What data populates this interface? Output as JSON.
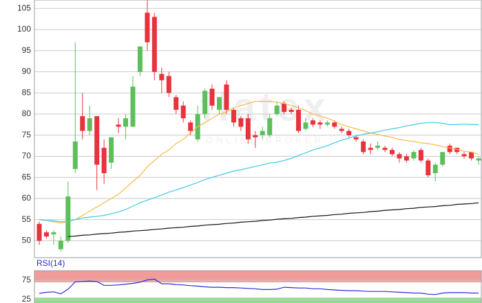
{
  "chart_data": [
    {
      "type": "candlestick",
      "watermark": {
        "logo": "flatex",
        "tagline": "ONLINE BROKER"
      },
      "up_color": "#5cbf5c",
      "down_color": "#e8323c",
      "open": [
        54,
        52,
        51.5,
        48,
        50,
        67,
        79.5,
        76,
        79.5,
        72,
        68.5,
        77.5,
        77,
        77,
        90,
        104,
        103,
        89.5,
        89,
        84,
        82,
        78,
        74,
        80,
        86,
        81,
        87,
        81,
        79,
        79,
        75,
        75,
        75,
        80,
        82.5,
        81,
        81,
        76.5,
        78.5,
        78,
        77.5,
        78,
        76.5,
        76,
        74.5,
        73.5,
        72,
        72,
        72,
        71.5,
        70.5,
        70,
        69.5,
        71.5,
        69,
        66,
        68,
        72.5,
        72,
        70.5,
        71,
        69
      ],
      "high": [
        54.5,
        52.5,
        52.5,
        51,
        64,
        97,
        85,
        82,
        79.5,
        74,
        74.5,
        79,
        80,
        89,
        96,
        107,
        104,
        91,
        90,
        84.5,
        83,
        78.5,
        82,
        86,
        87,
        84,
        88,
        81.5,
        79.5,
        80,
        76,
        77,
        80,
        83,
        83,
        81.5,
        82,
        79,
        79,
        78.5,
        78.5,
        78.5,
        77,
        76.5,
        75,
        74,
        73,
        73.5,
        72.5,
        72,
        71,
        70.5,
        71.5,
        72,
        69.5,
        68.5,
        71,
        73,
        72,
        71,
        71,
        70
      ],
      "low": [
        49,
        50.5,
        49,
        47.5,
        49.5,
        66,
        74,
        75,
        62,
        63.5,
        67,
        75.5,
        74,
        77,
        89,
        95,
        88,
        85,
        84,
        80,
        78,
        75,
        73.5,
        79,
        81,
        80,
        80,
        77,
        76,
        73,
        72,
        74,
        74.5,
        79.5,
        80,
        80,
        75.5,
        76,
        77,
        76.5,
        77,
        76.5,
        75.5,
        74.5,
        73.5,
        70.5,
        70.5,
        71.5,
        71,
        70,
        68.5,
        68.5,
        69,
        68.5,
        65,
        64,
        67.5,
        70.5,
        70.5,
        69.5,
        69,
        68
      ],
      "close": [
        50,
        51,
        52,
        50,
        60.5,
        73.5,
        76,
        79,
        68,
        66,
        74.5,
        77,
        79,
        86.5,
        96,
        97,
        90,
        88,
        85,
        81,
        79,
        76,
        80,
        85.5,
        82,
        84,
        81,
        78,
        77,
        74,
        74.5,
        76,
        79,
        82,
        80.5,
        80.5,
        76,
        78,
        77.5,
        77.5,
        78,
        77,
        76,
        75,
        74,
        71,
        71.5,
        72.5,
        71.5,
        70.5,
        69.5,
        69,
        71,
        69,
        65.5,
        68,
        71,
        71,
        71,
        70,
        69.5,
        69.5
      ],
      "series": [
        {
          "color": "#f5b942",
          "values": [
            55,
            54.8,
            54.5,
            54.2,
            54.5,
            55,
            56,
            57,
            58,
            59,
            60,
            61,
            62.5,
            64,
            65.5,
            67.5,
            69,
            70.5,
            71.5,
            73,
            74,
            75.5,
            77,
            78,
            79,
            80,
            80.5,
            81.5,
            82,
            82.5,
            83,
            83,
            83,
            82.8,
            82.5,
            82,
            81.5,
            80.8,
            80,
            79.5,
            79,
            78.3,
            77.5,
            77,
            76.5,
            76,
            75.5,
            75.2,
            74.8,
            74.5,
            74,
            73.7,
            73.5,
            73.2,
            73,
            72.7,
            72.3,
            72,
            71.6,
            71.2,
            71,
            70.5
          ]
        },
        {
          "color": "#3fc8e6",
          "values": [
            55,
            54.8,
            54.7,
            54.5,
            54.5,
            55,
            55.4,
            55.6,
            55.8,
            56,
            56.4,
            56.8,
            57.4,
            58.2,
            59,
            59.6,
            60.2,
            60.8,
            61.5,
            62,
            62.6,
            63.2,
            63.8,
            64.5,
            65,
            65.5,
            66,
            66.5,
            66.8,
            67.2,
            67.6,
            68,
            68.4,
            68.6,
            69,
            69.5,
            70.2,
            70.8,
            71.5,
            72,
            72.5,
            73.2,
            73.8,
            74.3,
            74.8,
            75.2,
            75.5,
            75.8,
            76.2,
            76.5,
            76.8,
            77.2,
            77.5,
            77.8,
            78,
            78,
            77.8,
            77.5,
            77.5,
            77.6,
            77.5,
            77.5
          ]
        },
        {
          "color": "#111111",
          "values": [
            null,
            null,
            null,
            null,
            51,
            51.1,
            51.3,
            51.4,
            51.6,
            51.7,
            51.8,
            52,
            52.1,
            52.3,
            52.4,
            52.5,
            52.7,
            52.8,
            53,
            53.1,
            53.2,
            53.4,
            53.5,
            53.7,
            53.8,
            53.9,
            54.1,
            54.2,
            54.4,
            54.5,
            54.6,
            54.8,
            54.9,
            55.1,
            55.2,
            55.3,
            55.5,
            55.6,
            55.8,
            55.9,
            56,
            56.2,
            56.3,
            56.5,
            56.6,
            56.7,
            56.9,
            57,
            57.2,
            57.3,
            57.4,
            57.6,
            57.7,
            57.9,
            58,
            58.1,
            58.3,
            58.4,
            58.6,
            58.7,
            58.8,
            59
          ]
        }
      ],
      "ylim": [
        46,
        107
      ],
      "yticks": [
        50,
        55,
        60,
        65,
        70,
        75,
        80,
        85,
        90,
        95,
        100,
        105
      ],
      "grid": true
    },
    {
      "type": "line",
      "title": "RSI(14)",
      "bands": [
        {
          "from": 70,
          "to": 100,
          "color": "#f08a8a"
        },
        {
          "from": 0,
          "to": 30,
          "color": "#7fd67f"
        }
      ],
      "series": [
        {
          "color": "#2a2ad8",
          "values": [
            41,
            44,
            45,
            40,
            52,
            71,
            72,
            73,
            72,
            62,
            62,
            63,
            65,
            67,
            70,
            76,
            78,
            66,
            66,
            64,
            63,
            61,
            60,
            58,
            57,
            57,
            56,
            56,
            55,
            54,
            53,
            51,
            51,
            52,
            57,
            56,
            55,
            55,
            53,
            53,
            51,
            50,
            49,
            48,
            48,
            47,
            46,
            46,
            46,
            45,
            44,
            43,
            42,
            42,
            39,
            38,
            42,
            43,
            43,
            43,
            42,
            42
          ]
        }
      ],
      "ylim": [
        0,
        100
      ],
      "yticks": [
        25,
        75
      ],
      "grid": true
    }
  ]
}
